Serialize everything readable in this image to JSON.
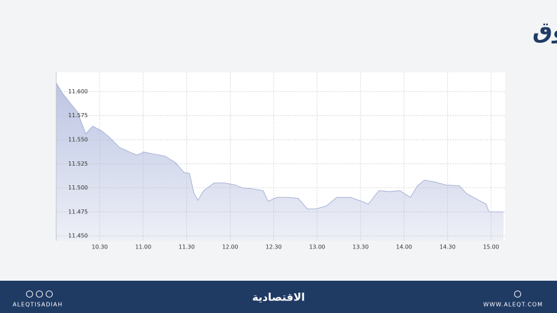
{
  "chart_data": {
    "type": "area",
    "title": "مؤشر السوق",
    "x": [
      10.0,
      10.065,
      10.161,
      10.242,
      10.306,
      10.339,
      10.419,
      10.524,
      10.605,
      10.726,
      10.847,
      10.927,
      11.008,
      11.129,
      11.25,
      11.371,
      11.468,
      11.532,
      11.581,
      11.629,
      11.694,
      11.815,
      11.935,
      12.056,
      12.137,
      12.258,
      12.379,
      12.435,
      12.54,
      12.661,
      12.782,
      12.887,
      12.984,
      13.105,
      13.226,
      13.387,
      13.508,
      13.589,
      13.71,
      13.831,
      13.952,
      14.073,
      14.153,
      14.234,
      14.355,
      14.476,
      14.637,
      14.718,
      14.839,
      14.944,
      14.976,
      15.145
    ],
    "values": [
      11.609,
      11.599,
      11.588,
      11.579,
      11.564,
      11.556,
      11.564,
      11.559,
      11.553,
      11.542,
      11.537,
      11.534,
      11.537,
      11.535,
      11.533,
      11.526,
      11.516,
      11.515,
      11.495,
      11.487,
      11.497,
      11.505,
      11.505,
      11.503,
      11.5,
      11.499,
      11.497,
      11.486,
      11.49,
      11.49,
      11.489,
      11.478,
      11.478,
      11.481,
      11.49,
      11.49,
      11.486,
      11.483,
      11.497,
      11.496,
      11.497,
      11.49,
      11.502,
      11.508,
      11.506,
      11.503,
      11.502,
      11.494,
      11.488,
      11.483,
      11.475,
      11.475
    ],
    "color": "#c5cde6",
    "line_color": "#a9b3d6",
    "xlim": [
      10.0,
      15.16
    ],
    "ylim": [
      11.445,
      11.62
    ],
    "xticks": [
      {
        "value": 10.5,
        "label": "10.30"
      },
      {
        "value": 11,
        "label": "11.00"
      },
      {
        "value": 11.5,
        "label": "11.30"
      },
      {
        "value": 12,
        "label": "12.00"
      },
      {
        "value": 12.5,
        "label": "12.30"
      },
      {
        "value": 13,
        "label": "13.00"
      },
      {
        "value": 13.5,
        "label": "13.30"
      },
      {
        "value": 14,
        "label": "14.00"
      },
      {
        "value": 14.5,
        "label": "14.30"
      },
      {
        "value": 15,
        "label": "15.00"
      }
    ],
    "yticks": [
      {
        "value": 11.45,
        "label": "11.450"
      },
      {
        "value": 11.475,
        "label": "11.475"
      },
      {
        "value": 11.5,
        "label": "11.500"
      },
      {
        "value": 11.525,
        "label": "11.525"
      },
      {
        "value": 11.55,
        "label": "11.550"
      },
      {
        "value": 11.575,
        "label": "11.575"
      },
      {
        "value": 11.6,
        "label": "11.600"
      }
    ],
    "grid": true
  },
  "footer": {
    "social": "ALEQTISADIAH",
    "logo": "الاقتصادية",
    "website": "WWW.ALEQT.COM"
  }
}
